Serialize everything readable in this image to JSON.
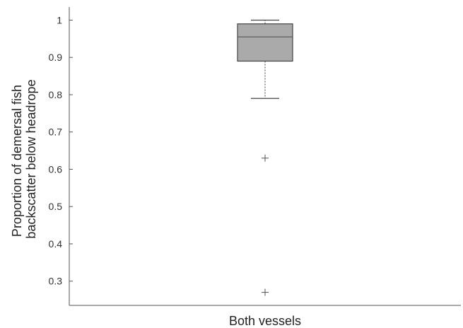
{
  "chart_data": {
    "type": "box",
    "title": "",
    "xlabel": "",
    "ylabel_lines": [
      "Proportion of demersal fish",
      "backscatter below headrope"
    ],
    "categories": [
      "Both vessels"
    ],
    "ylim": [
      0.235,
      1.035
    ],
    "yticks": [
      0.3,
      0.4,
      0.5,
      0.6,
      0.7,
      0.8,
      0.9,
      1.0
    ],
    "ytick_labels": [
      "0.3",
      "0.4",
      "0.5",
      "0.6",
      "0.7",
      "0.8",
      "0.9",
      "1"
    ],
    "grid": false,
    "boxes": [
      {
        "category": "Both vessels",
        "whisker_low": 0.79,
        "q1": 0.89,
        "median": 0.955,
        "q3": 0.99,
        "whisker_high": 1.0,
        "outliers": [
          0.63,
          0.27
        ]
      }
    ],
    "colors": {
      "box_fill": "#aaaaaa",
      "box_stroke": "#444444",
      "median": "#555555",
      "whisker": "#444444",
      "outlier": "#555555"
    }
  }
}
